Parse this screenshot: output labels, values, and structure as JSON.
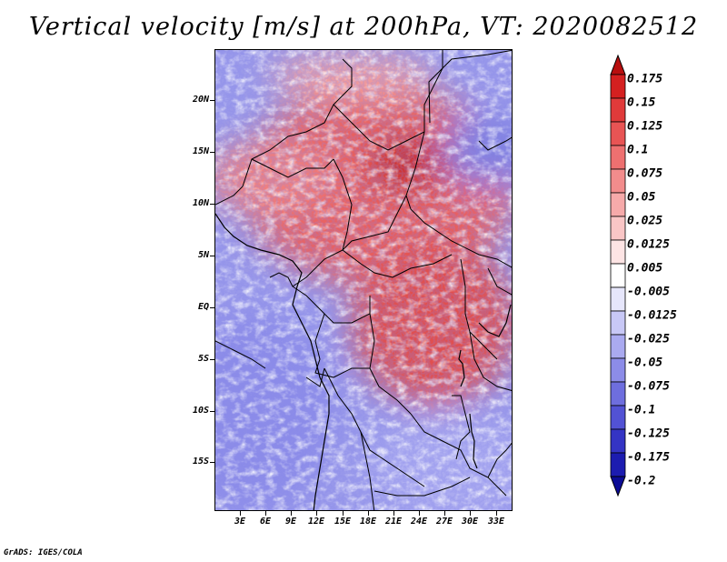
{
  "title": "Vertical velocity [m/s] at 200hPa, VT: 2020082512",
  "map": {
    "region": "Central and East Africa",
    "field_description": "Vertical velocity at 200hPa",
    "lat_ticks": [
      "20N",
      "15N",
      "10N",
      "5N",
      "EQ",
      "5S",
      "10S",
      "15S"
    ],
    "lon_ticks": [
      "3E",
      "6E",
      "9E",
      "12E",
      "15E",
      "18E",
      "21E",
      "24E",
      "27E",
      "30E",
      "33E"
    ],
    "lat_range": [
      -19.5,
      24.5
    ],
    "lon_range": [
      0,
      35
    ]
  },
  "colorbar": {
    "levels": [
      "0.175",
      "0.15",
      "0.125",
      "0.1",
      "0.075",
      "0.05",
      "0.025",
      "0.0125",
      "0.005",
      "-0.005",
      "-0.0125",
      "-0.025",
      "-0.05",
      "-0.075",
      "-0.1",
      "-0.125",
      "-0.175",
      "-0.2"
    ],
    "colors": [
      "#b80f0f",
      "#d42020",
      "#e03a3a",
      "#e85454",
      "#ee7070",
      "#f28c8c",
      "#f6aaaa",
      "#fac6c6",
      "#fde4e4",
      "#ffffff",
      "#e6e6fb",
      "#c8c8f6",
      "#aaaaf0",
      "#8c8ce8",
      "#6e6ede",
      "#5252d4",
      "#3434c4",
      "#1c1cb0",
      "#0c0c96"
    ]
  },
  "footer": "GrADS: IGES/COLA"
}
